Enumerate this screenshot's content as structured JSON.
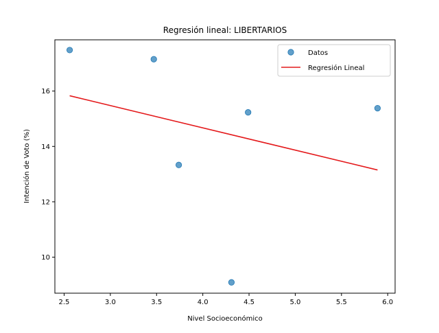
{
  "chart_data": {
    "type": "scatter",
    "title": "Regresión lineal: LIBERTARIOS",
    "xlabel": "Nivel Socioeconómico",
    "ylabel": "Intención de Voto (%)",
    "xlim": [
      2.4,
      6.08
    ],
    "ylim": [
      8.7,
      17.85
    ],
    "xticks": [
      "2.5",
      "3.0",
      "3.5",
      "4.0",
      "4.5",
      "5.0",
      "5.5",
      "6.0"
    ],
    "xtick_values": [
      2.5,
      3.0,
      3.5,
      4.0,
      4.5,
      5.0,
      5.5,
      6.0
    ],
    "yticks": [
      "10",
      "12",
      "14",
      "16"
    ],
    "ytick_values": [
      10,
      12,
      14,
      16
    ],
    "grid": false,
    "legend_position": "top-right",
    "series": [
      {
        "name": "Datos",
        "kind": "scatter",
        "color": "#1f77b4",
        "points": [
          {
            "x": 2.56,
            "y": 17.48
          },
          {
            "x": 3.47,
            "y": 17.15
          },
          {
            "x": 3.74,
            "y": 13.33
          },
          {
            "x": 4.31,
            "y": 9.09
          },
          {
            "x": 4.49,
            "y": 15.23
          },
          {
            "x": 5.89,
            "y": 15.38
          }
        ]
      },
      {
        "name": "Regresión Lineal",
        "kind": "line",
        "color": "#e41a1c",
        "points": [
          {
            "x": 2.56,
            "y": 15.83
          },
          {
            "x": 5.89,
            "y": 13.15
          }
        ]
      }
    ]
  }
}
